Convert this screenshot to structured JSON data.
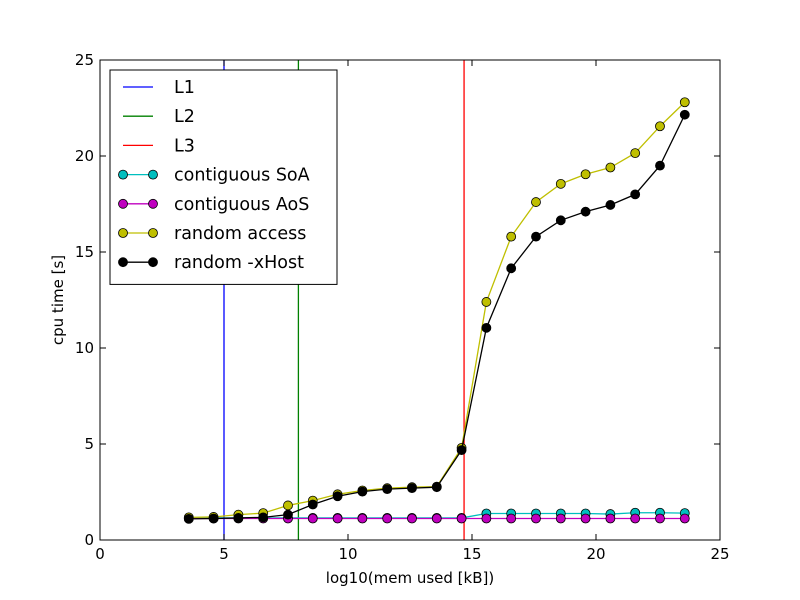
{
  "chart_data": {
    "type": "line",
    "xlabel": "log10(mem used [kB])",
    "ylabel": "cpu time [s]",
    "xlim": [
      0,
      25
    ],
    "ylim": [
      0,
      25
    ],
    "xticks": [
      0,
      5,
      10,
      15,
      20,
      25
    ],
    "yticks": [
      0,
      5,
      10,
      15,
      20,
      25
    ],
    "grid": false,
    "legend_position": "top-left",
    "vlines": [
      {
        "name": "L1",
        "x": 5.0,
        "color": "#0000ff"
      },
      {
        "name": "L2",
        "x": 8.0,
        "color": "#008000"
      },
      {
        "name": "L3",
        "x": 14.68,
        "color": "#ff0000"
      }
    ],
    "x": [
      3.58,
      4.58,
      5.58,
      6.58,
      7.58,
      8.58,
      9.58,
      10.58,
      11.58,
      12.58,
      13.58,
      14.58,
      15.58,
      16.58,
      17.58,
      18.58,
      19.58,
      20.58,
      21.58,
      22.58,
      23.58
    ],
    "series": [
      {
        "name": "contiguous SoA",
        "color": "#00bfbf",
        "values": [
          1.15,
          1.15,
          1.15,
          1.15,
          1.15,
          1.15,
          1.15,
          1.15,
          1.15,
          1.15,
          1.15,
          1.15,
          1.38,
          1.38,
          1.38,
          1.38,
          1.38,
          1.35,
          1.42,
          1.42,
          1.4
        ]
      },
      {
        "name": "contiguous AoS",
        "color": "#bf00bf",
        "values": [
          1.12,
          1.12,
          1.12,
          1.12,
          1.12,
          1.12,
          1.12,
          1.12,
          1.12,
          1.12,
          1.12,
          1.12,
          1.12,
          1.12,
          1.12,
          1.12,
          1.12,
          1.12,
          1.12,
          1.12,
          1.12
        ]
      },
      {
        "name": "random access",
        "color": "#bfbf00",
        "values": [
          1.18,
          1.2,
          1.32,
          1.4,
          1.8,
          2.05,
          2.38,
          2.58,
          2.7,
          2.75,
          2.78,
          4.8,
          12.4,
          15.8,
          17.6,
          18.55,
          19.05,
          19.4,
          20.15,
          21.55,
          22.8
        ]
      },
      {
        "name": "random -xHost",
        "color": "#000000",
        "values": [
          1.1,
          1.12,
          1.15,
          1.18,
          1.32,
          1.85,
          2.28,
          2.52,
          2.65,
          2.7,
          2.75,
          4.68,
          11.05,
          14.15,
          15.8,
          16.65,
          17.1,
          17.45,
          18.0,
          19.5,
          22.15
        ]
      }
    ]
  }
}
